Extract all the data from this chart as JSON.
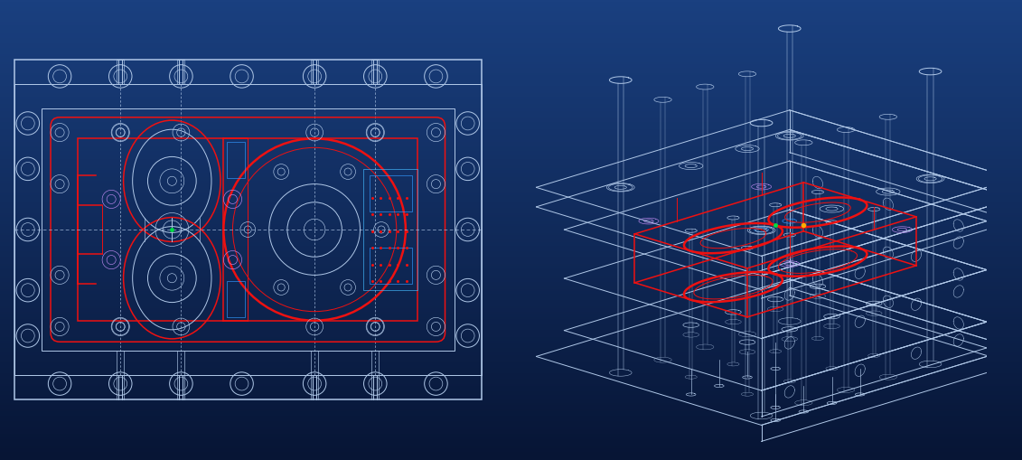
{
  "bg_color": "#0d2d6b",
  "line_white": "#b0c8e8",
  "line_red": "#ee1111",
  "line_blue": "#3399ff",
  "line_cyan": "#44bbff",
  "line_purple": "#bb88ee",
  "line_green": "#00dd44",
  "line_orange": "#ffaa00",
  "line_gray": "#8899bb",
  "fig_width": 11.31,
  "fig_height": 5.1
}
